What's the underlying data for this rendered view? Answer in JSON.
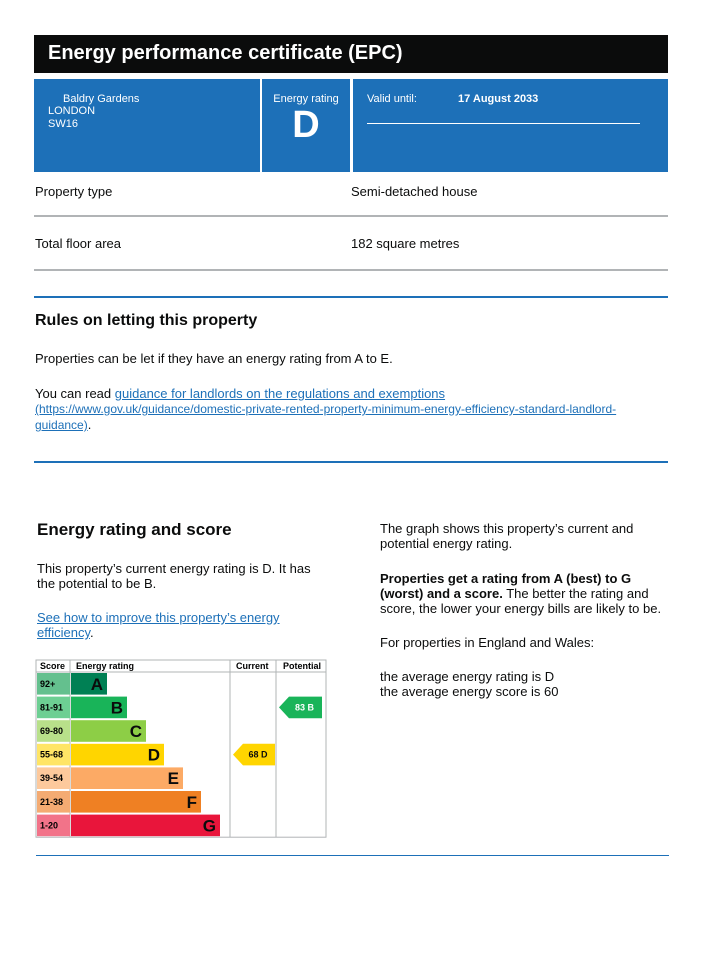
{
  "header": {
    "title": "Energy performance certificate (EPC)",
    "address": [
      "Baldry Gardens",
      "LONDON",
      "SW16"
    ],
    "rating_label": "Energy rating",
    "rating": "D",
    "valid_label": "Valid until:",
    "valid_date": "17 August 2033"
  },
  "details": [
    {
      "label": "Property type",
      "value": "Semi-detached house"
    },
    {
      "label": "Total floor area",
      "value": "182 square metres"
    }
  ],
  "letting": {
    "title": "Rules on letting this property",
    "text": "Properties can be let if they have an energy rating from A to E.",
    "read_prefix": "You can read ",
    "link_text": "guidance for landlords on the regulations and exemptions",
    "link_url": "(https://www.gov.uk/guidance/domestic-private-rented-property-minimum-energy-efficiency-standard-landlord-guidance)",
    "read_suffix": "."
  },
  "rating_section": {
    "title": "Energy rating and score",
    "text": "This property’s current energy rating is D. It has the potential to be B.",
    "link_text": "See how to improve this property’s energy efficiency",
    "link_suffix": ".",
    "chart": {
      "headers": [
        "Score",
        "Energy rating",
        "Current",
        "Potential"
      ],
      "bands": [
        {
          "score": "92+",
          "letter": "A"
        },
        {
          "score": "81-91",
          "letter": "B"
        },
        {
          "score": "69-80",
          "letter": "C"
        },
        {
          "score": "55-68",
          "letter": "D"
        },
        {
          "score": "39-54",
          "letter": "E"
        },
        {
          "score": "21-38",
          "letter": "F"
        },
        {
          "score": "1-20",
          "letter": "G"
        }
      ],
      "current": {
        "score": 68,
        "letter": "D"
      },
      "potential": {
        "score": 83,
        "letter": "B"
      }
    },
    "graph_text": "The graph shows this property’s current and potential energy rating.",
    "bold_text": "Properties get a rating from A (best) to G (worst) and a score.",
    "bold_after": " The better the rating and score, the lower your energy bills are likely to be.",
    "region_text": "For properties in England and Wales:",
    "averages": [
      "the average energy rating is D",
      "the average energy score is 60"
    ]
  }
}
